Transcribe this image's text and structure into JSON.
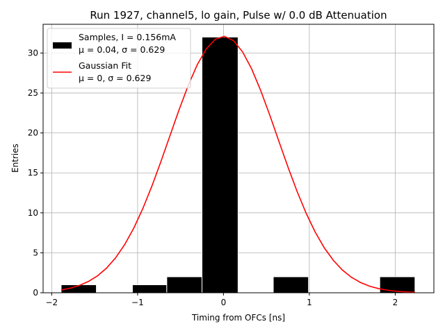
{
  "chart_data": {
    "type": "bar",
    "title": "Run 1927, channel5, lo gain, Pulse w/ 0.0 dB Attenuation",
    "xlabel": "Timing from OFCs [ns]",
    "ylabel": "Entries",
    "xlim": [
      -2.1,
      2.45
    ],
    "ylim": [
      0,
      33.6
    ],
    "grid": true,
    "xticks": [
      -2,
      -1,
      0,
      1,
      2
    ],
    "xtick_labels": [
      "−2",
      "−1",
      "0",
      "1",
      "2"
    ],
    "yticks": [
      0,
      5,
      10,
      15,
      20,
      25,
      30
    ],
    "ytick_labels": [
      "0",
      "5",
      "10",
      "15",
      "20",
      "25",
      "30"
    ],
    "legend_position": "top-left",
    "histogram": {
      "name": "Samples",
      "color": "#000000",
      "edge_color": "#ffffff",
      "bins": [
        {
          "left": -1.89,
          "right": -1.48,
          "count": 1
        },
        {
          "left": -1.06,
          "right": -0.66,
          "count": 1
        },
        {
          "left": -0.66,
          "right": -0.25,
          "count": 2
        },
        {
          "left": -0.25,
          "right": 0.17,
          "count": 32
        },
        {
          "left": 0.58,
          "right": 0.99,
          "count": 2
        },
        {
          "left": 1.82,
          "right": 2.23,
          "count": 2
        }
      ]
    },
    "fit": {
      "name": "Gaussian Fit",
      "color": "#ff0000",
      "mu": 0,
      "sigma": 0.629,
      "amplitude": 32.1,
      "x_range": [
        -1.89,
        2.23
      ],
      "n_points": 40
    },
    "legend": [
      {
        "kind": "bar",
        "line1": "Samples, I = 0.156mA",
        "line2": "μ = 0.04, σ = 0.629"
      },
      {
        "kind": "line",
        "line1": "Gaussian Fit",
        "line2": "μ = 0, σ = 0.629"
      }
    ]
  }
}
